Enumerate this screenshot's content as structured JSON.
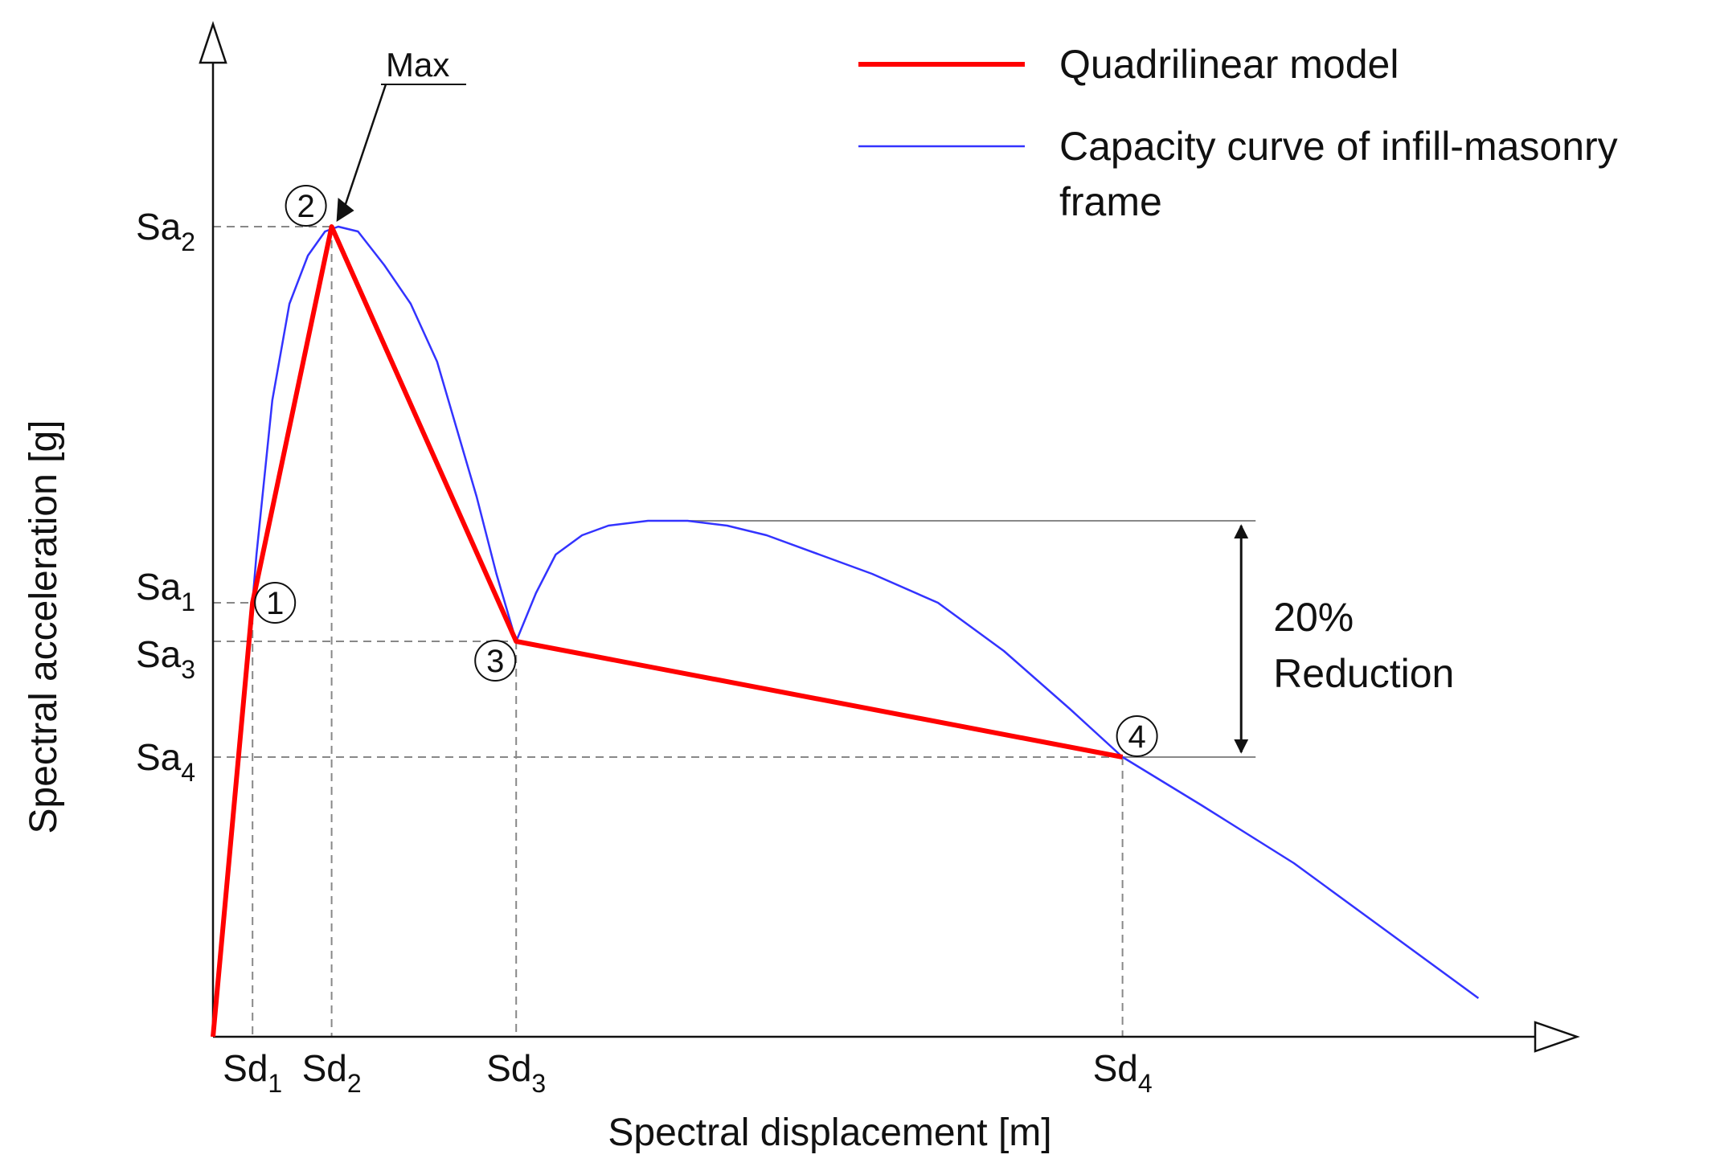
{
  "chart_data": {
    "type": "line",
    "title": "",
    "xlabel": "Spectral displacement [m]",
    "ylabel": "Spectral acceleration [g]",
    "xlim": [
      0,
      10
    ],
    "ylim": [
      0,
      10
    ],
    "grid": false,
    "legend_position": "top-right",
    "colors": {
      "quadrilinear": "#ff0000",
      "capacity": "#3333ff",
      "guide": "#888888",
      "axis": "#111111"
    },
    "series": [
      {
        "name": "Quadrilinear model",
        "style": "thick-red",
        "x": [
          0.0,
          0.3,
          0.9,
          2.3,
          6.9
        ],
        "y": [
          0.0,
          4.5,
          8.4,
          4.1,
          2.9
        ]
      },
      {
        "name": "Capacity curve of infill-masonry frame",
        "style": "thin-blue",
        "x": [
          0.0,
          0.22,
          0.33,
          0.45,
          0.58,
          0.72,
          0.85,
          0.95,
          1.1,
          1.3,
          1.5,
          1.7,
          1.85,
          2.0,
          2.15,
          2.3,
          2.45,
          2.6,
          2.8,
          3.0,
          3.3,
          3.6,
          3.9,
          4.2,
          4.6,
          5.0,
          5.5,
          6.0,
          6.5,
          6.9,
          7.5,
          8.2,
          8.8,
          9.6
        ],
        "y": [
          0.0,
          3.2,
          5.0,
          6.6,
          7.6,
          8.1,
          8.35,
          8.4,
          8.35,
          8.0,
          7.6,
          7.0,
          6.3,
          5.6,
          4.8,
          4.1,
          4.6,
          5.0,
          5.2,
          5.3,
          5.35,
          5.35,
          5.3,
          5.2,
          5.0,
          4.8,
          4.5,
          4.0,
          3.4,
          2.9,
          2.4,
          1.8,
          1.2,
          0.4
        ]
      }
    ],
    "points": [
      {
        "id": "p1",
        "label": "1",
        "x": 0.3,
        "y": 4.5
      },
      {
        "id": "p2",
        "label": "2",
        "x": 0.9,
        "y": 8.4
      },
      {
        "id": "p3",
        "label": "3",
        "x": 2.3,
        "y": 4.1
      },
      {
        "id": "p4",
        "label": "4",
        "x": 6.9,
        "y": 2.9
      }
    ],
    "x_ticks": [
      {
        "base": "Sd",
        "sub": "1",
        "x": 0.3
      },
      {
        "base": "Sd",
        "sub": "2",
        "x": 0.9
      },
      {
        "base": "Sd",
        "sub": "3",
        "x": 2.3
      },
      {
        "base": "Sd",
        "sub": "4",
        "x": 6.9
      }
    ],
    "y_ticks": [
      {
        "base": "Sa",
        "sub": "2",
        "y": 8.4
      },
      {
        "base": "Sa",
        "sub": "1",
        "y": 4.5
      },
      {
        "base": "Sa",
        "sub": "3",
        "y": 4.1
      },
      {
        "base": "Sa",
        "sub": "4",
        "y": 2.9
      }
    ],
    "annotations": {
      "max_label": "Max",
      "reduction_percent": "20%",
      "reduction_word": "Reduction",
      "reduction_top_y": 5.35,
      "reduction_bottom_y": 2.9,
      "reduction_arrow_x": 7.8
    },
    "legend": [
      {
        "series": "Quadrilinear model",
        "lines": [
          "Quadrilinear model"
        ]
      },
      {
        "series": "Capacity curve of infill-masonry frame",
        "lines": [
          "Capacity curve of infill-masonry",
          "frame"
        ]
      }
    ]
  }
}
